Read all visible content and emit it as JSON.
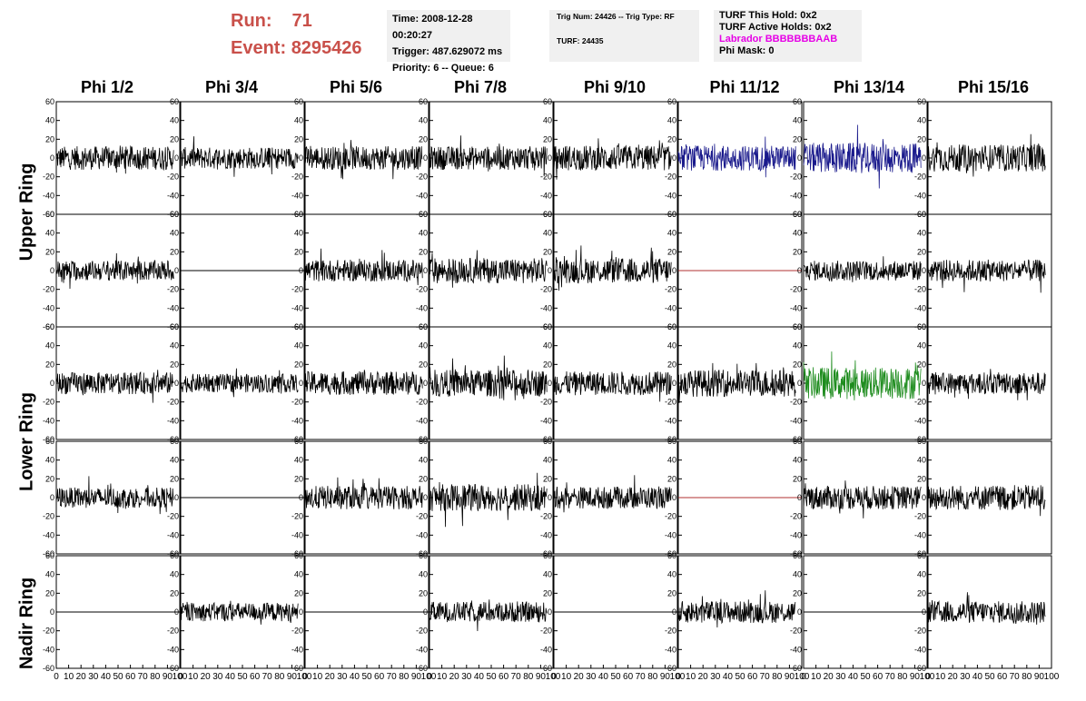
{
  "header": {
    "run_label": "Run:",
    "run_value": "71",
    "event_label": "Event:",
    "event_value": "8295426"
  },
  "info_box_1": {
    "line1": "Time: 2008-12-28 00:20:27",
    "line2": "Trigger: 487.629072 ms",
    "line3": "Priority: 6 -- Queue: 6"
  },
  "info_box_2": {
    "line1": "Trig Num: 24426 -- Trig Type: RF",
    "line2": "TURF: 24435"
  },
  "info_box_3": {
    "line1": "TURF This Hold: 0x2",
    "line2": "TURF Active Holds: 0x2",
    "line3": "Labrador BBBBBBBAAB",
    "line4": "Phi Mask: 0"
  },
  "colors": {
    "header_red": "#c9504a",
    "trace_default": "#000000",
    "trace_blue": "#1a1a8c",
    "trace_green": "#1e8c1e",
    "trace_flat_red": "#b03030",
    "magenta": "#e600e6"
  },
  "columns": [
    "Phi 1/2",
    "Phi 3/4",
    "Phi 5/6",
    "Phi 7/8",
    "Phi 9/10",
    "Phi 11/12",
    "Phi 13/14",
    "Phi 15/16"
  ],
  "row_labels": [
    "Upper Ring",
    "Lower Ring",
    "Nadir Ring"
  ],
  "chart_data": {
    "type": "line",
    "description_rows": [
      "Upper Ring A",
      "Upper Ring B",
      "Lower Ring A",
      "Lower Ring B",
      "Nadir Ring"
    ],
    "xlim": [
      0,
      100
    ],
    "ylim": [
      -60,
      60
    ],
    "x_ticks": [
      "0",
      "10",
      "20",
      "30",
      "40",
      "50",
      "60",
      "70",
      "80",
      "90",
      "100"
    ],
    "y_ticks": [
      "-60",
      "-40",
      "-20",
      "0",
      "20",
      "40",
      "60"
    ],
    "grid": false,
    "panels": [
      [
        {
          "mode": "noise",
          "amp": 14,
          "color": "trace_default"
        },
        {
          "mode": "noise",
          "amp": 13,
          "color": "trace_default"
        },
        {
          "mode": "noise",
          "amp": 14,
          "color": "trace_default"
        },
        {
          "mode": "noise",
          "amp": 14,
          "color": "trace_default"
        },
        {
          "mode": "noise",
          "amp": 15,
          "color": "trace_default"
        },
        {
          "mode": "noise",
          "amp": 15,
          "color": "trace_blue"
        },
        {
          "mode": "noise",
          "amp": 18,
          "color": "trace_blue"
        },
        {
          "mode": "noise",
          "amp": 16,
          "color": "trace_default"
        }
      ],
      [
        {
          "mode": "noise",
          "amp": 12,
          "color": "trace_default"
        },
        {
          "mode": "flat",
          "color": "trace_default"
        },
        {
          "mode": "noise",
          "amp": 13,
          "color": "trace_default"
        },
        {
          "mode": "noise",
          "amp": 15,
          "color": "trace_default"
        },
        {
          "mode": "noise",
          "amp": 15,
          "color": "trace_default"
        },
        {
          "mode": "flat",
          "color": "trace_flat_red"
        },
        {
          "mode": "noise",
          "amp": 12,
          "color": "trace_default"
        },
        {
          "mode": "noise",
          "amp": 13,
          "color": "trace_default"
        }
      ],
      [
        {
          "mode": "noise",
          "amp": 13,
          "color": "trace_default"
        },
        {
          "mode": "noise",
          "amp": 11,
          "color": "trace_default"
        },
        {
          "mode": "noise",
          "amp": 14,
          "color": "trace_default"
        },
        {
          "mode": "noise",
          "amp": 16,
          "color": "trace_default"
        },
        {
          "mode": "noise",
          "amp": 14,
          "color": "trace_default"
        },
        {
          "mode": "noise",
          "amp": 16,
          "color": "trace_default"
        },
        {
          "mode": "noise",
          "amp": 19,
          "color": "trace_green"
        },
        {
          "mode": "noise",
          "amp": 13,
          "color": "trace_default"
        }
      ],
      [
        {
          "mode": "noise",
          "amp": 12,
          "color": "trace_default"
        },
        {
          "mode": "flat",
          "color": "trace_default"
        },
        {
          "mode": "noise",
          "amp": 14,
          "color": "trace_default"
        },
        {
          "mode": "noise",
          "amp": 16,
          "color": "trace_default"
        },
        {
          "mode": "noise",
          "amp": 13,
          "color": "trace_default"
        },
        {
          "mode": "flat",
          "color": "trace_flat_red"
        },
        {
          "mode": "noise",
          "amp": 14,
          "color": "trace_default"
        },
        {
          "mode": "noise",
          "amp": 15,
          "color": "trace_default"
        }
      ],
      [
        {
          "mode": "flat",
          "color": "trace_default"
        },
        {
          "mode": "noise",
          "amp": 11,
          "color": "trace_default"
        },
        {
          "mode": "flat",
          "color": "trace_default"
        },
        {
          "mode": "noise",
          "amp": 12,
          "color": "trace_default"
        },
        {
          "mode": "flat",
          "color": "trace_default"
        },
        {
          "mode": "noise",
          "amp": 13,
          "color": "trace_default"
        },
        {
          "mode": "flat",
          "color": "trace_default"
        },
        {
          "mode": "noise",
          "amp": 13,
          "color": "trace_default"
        }
      ]
    ]
  }
}
